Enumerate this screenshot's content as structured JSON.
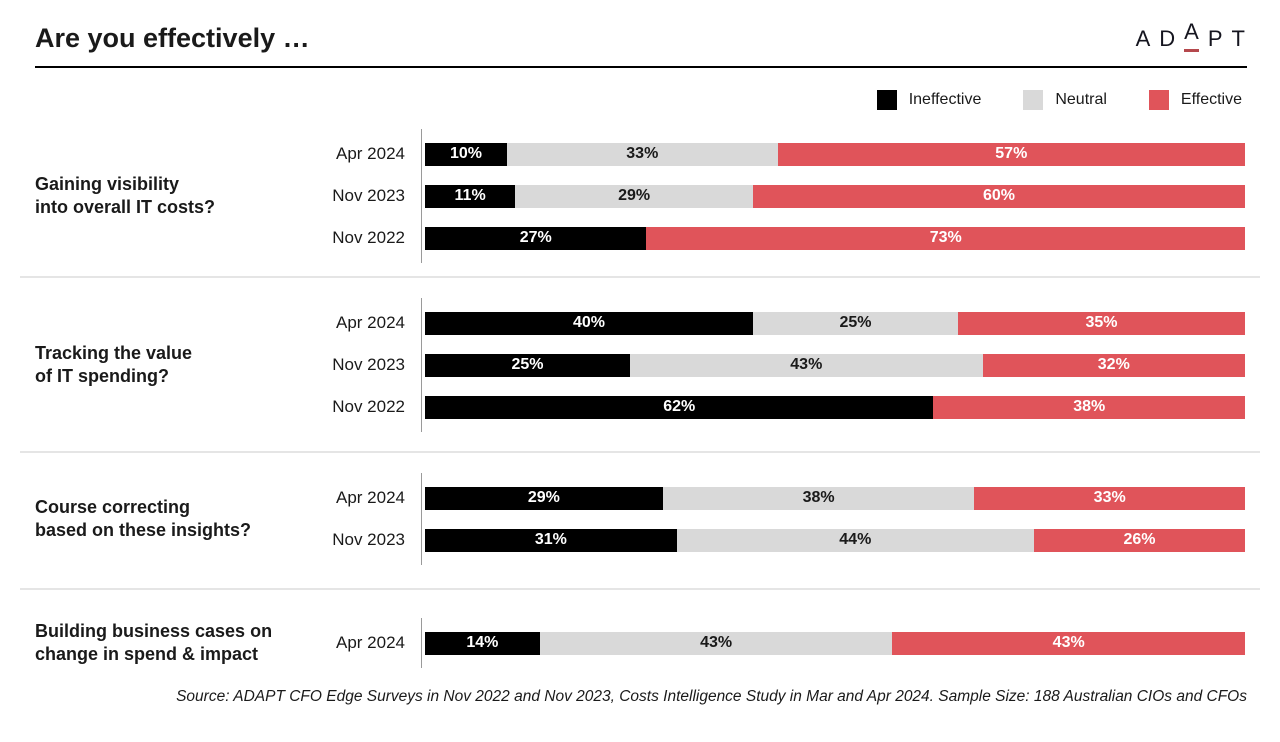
{
  "header": {
    "title": "Are you effectively …",
    "logo": {
      "text": "ADAPT",
      "letters": [
        "A",
        "D",
        "A",
        "P",
        "T"
      ],
      "raised_index": 2,
      "underline_color": "#b5484d"
    }
  },
  "legend": {
    "items": [
      {
        "label": "Ineffective",
        "color": "#000000"
      },
      {
        "label": "Neutral",
        "color": "#d9d9d9"
      },
      {
        "label": "Effective",
        "color": "#e0545a"
      }
    ]
  },
  "chart_data": {
    "type": "bar",
    "variant": "horizontal-stacked",
    "unit": "%",
    "xlim": [
      0,
      100
    ],
    "series": [
      "Ineffective",
      "Neutral",
      "Effective"
    ],
    "colors": {
      "Ineffective": "#000000",
      "Neutral": "#d9d9d9",
      "Effective": "#e0545a"
    },
    "label_colors": {
      "Ineffective": "#ffffff",
      "Neutral": "#1a1a1a",
      "Effective": "#ffffff"
    },
    "groups": [
      {
        "question_lines": [
          "Gaining visibility",
          "into overall IT costs?"
        ],
        "rows": [
          {
            "period": "Apr 2024",
            "segments": [
              {
                "name": "Ineffective",
                "value": 10,
                "label": "10%"
              },
              {
                "name": "Neutral",
                "value": 33,
                "label": "33%"
              },
              {
                "name": "Effective",
                "value": 57,
                "label": "57%"
              }
            ]
          },
          {
            "period": "Nov 2023",
            "segments": [
              {
                "name": "Ineffective",
                "value": 11,
                "label": "11%"
              },
              {
                "name": "Neutral",
                "value": 29,
                "label": "29%"
              },
              {
                "name": "Effective",
                "value": 60,
                "label": "60%"
              }
            ]
          },
          {
            "period": "Nov 2022",
            "segments": [
              {
                "name": "Ineffective",
                "value": 27,
                "label": "27%"
              },
              {
                "name": "Effective",
                "value": 73,
                "label": "73%"
              }
            ]
          }
        ]
      },
      {
        "question_lines": [
          "Tracking the value",
          "of IT spending?"
        ],
        "rows": [
          {
            "period": "Apr 2024",
            "segments": [
              {
                "name": "Ineffective",
                "value": 40,
                "label": "40%"
              },
              {
                "name": "Neutral",
                "value": 25,
                "label": "25%"
              },
              {
                "name": "Effective",
                "value": 35,
                "label": "35%"
              }
            ]
          },
          {
            "period": "Nov 2023",
            "segments": [
              {
                "name": "Ineffective",
                "value": 25,
                "label": "25%"
              },
              {
                "name": "Neutral",
                "value": 43,
                "label": "43%"
              },
              {
                "name": "Effective",
                "value": 32,
                "label": "32%"
              }
            ]
          },
          {
            "period": "Nov 2022",
            "segments": [
              {
                "name": "Ineffective",
                "value": 62,
                "label": "62%"
              },
              {
                "name": "Effective",
                "value": 38,
                "label": "38%"
              }
            ]
          }
        ]
      },
      {
        "question_lines": [
          "Course correcting",
          "based on these insights?"
        ],
        "rows": [
          {
            "period": "Apr 2024",
            "segments": [
              {
                "name": "Ineffective",
                "value": 29,
                "label": "29%"
              },
              {
                "name": "Neutral",
                "value": 38,
                "label": "38%"
              },
              {
                "name": "Effective",
                "value": 33,
                "label": "33%"
              }
            ]
          },
          {
            "period": "Nov 2023",
            "segments": [
              {
                "name": "Ineffective",
                "value": 31,
                "label": "31%"
              },
              {
                "name": "Neutral",
                "value": 44,
                "label": "44%"
              },
              {
                "name": "Effective",
                "value": 26,
                "label": "26%"
              }
            ]
          }
        ]
      },
      {
        "question_lines": [
          "Building business cases on",
          "change in spend & impact"
        ],
        "rows": [
          {
            "period": "Apr 2024",
            "segments": [
              {
                "name": "Ineffective",
                "value": 14,
                "label": "14%"
              },
              {
                "name": "Neutral",
                "value": 43,
                "label": "43%"
              },
              {
                "name": "Effective",
                "value": 43,
                "label": "43%"
              }
            ]
          }
        ]
      }
    ]
  },
  "footer": {
    "source": "Source: ADAPT CFO Edge Surveys in Nov 2022 and Nov 2023, Costs Intelligence Study in Mar and Apr 2024. Sample Size: 188 Australian CIOs and CFOs"
  }
}
